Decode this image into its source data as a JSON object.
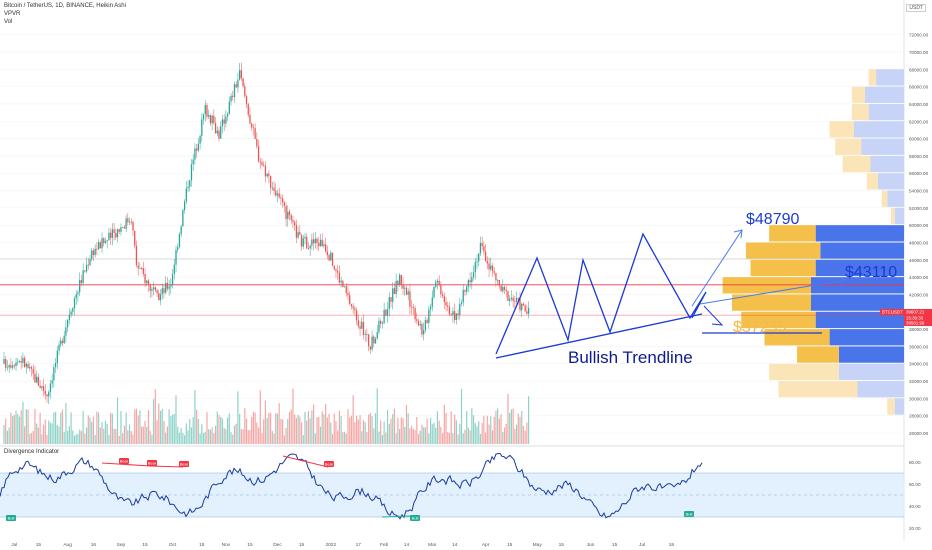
{
  "header": {
    "title": "Bitcoin / TetherUS, 1D, BINANCE, Heikin Ashi",
    "ind1": "VPVR",
    "ind2": "Vol",
    "currency": "USDT"
  },
  "indicator": {
    "title": "Divergence Indicator",
    "y_ticks": [
      "80.00",
      "60.00",
      "40.00",
      "20.00"
    ],
    "labels": [
      {
        "text": "Bull",
        "type": "bull"
      },
      {
        "text": "Bear",
        "type": "bear"
      },
      {
        "text": "Bear",
        "type": "bear"
      },
      {
        "text": "Bear",
        "type": "bear"
      },
      {
        "text": "Bear",
        "type": "bear"
      },
      {
        "text": "Bull",
        "type": "bull"
      },
      {
        "text": "Bull",
        "type": "bull"
      }
    ]
  },
  "price_axis": {
    "ticks": [
      "72000.00",
      "70000.00",
      "68000.00",
      "66000.00",
      "64000.00",
      "62000.00",
      "60000.00",
      "58000.00",
      "56000.00",
      "54000.00",
      "52000.00",
      "50000.00",
      "48000.00",
      "46000.00",
      "44000.00",
      "42000.00",
      "40000.00",
      "38000.00",
      "36000.00",
      "34000.00",
      "32000.00",
      "30000.00",
      "28000.00",
      "26000.00"
    ],
    "tags": [
      {
        "text": "39607.21",
        "color": "#f23645"
      },
      {
        "text": "15:39:33",
        "color": "#f23645"
      },
      {
        "text": "39561.99",
        "color": "#f23645"
      }
    ],
    "symbol": "BTCUSDT"
  },
  "time_axis": [
    "Jul",
    "15",
    "Aug",
    "16",
    "Sep",
    "15",
    "Oct",
    "18",
    "Nov",
    "15",
    "Dec",
    "15",
    "2022",
    "17",
    "Feb",
    "14",
    "Mar",
    "14",
    "Apr",
    "15",
    "May",
    "15",
    "Jun",
    "15",
    "Jul",
    "18"
  ],
  "annotations": [
    {
      "text": "$48790",
      "color": "#1a3ad6"
    },
    {
      "text": "$43110",
      "color": "#1a3ad6"
    },
    {
      "text": "$37235",
      "color": "#f5b84c"
    },
    {
      "text": "Bullish Trendline",
      "color": "#0d1b8f"
    }
  ],
  "chart_data": {
    "type": "candlestick",
    "title": "Bitcoin / TetherUS, 1D, BINANCE, Heikin Ashi",
    "ylim": [
      24500,
      73000
    ],
    "x_range": [
      "2021-06-25",
      "2022-07-25"
    ],
    "price_path": [
      [
        "2021-06-25",
        34000
      ],
      [
        "2021-07-05",
        34500
      ],
      [
        "2021-07-20",
        30500
      ],
      [
        "2021-08-02",
        40000
      ],
      [
        "2021-08-15",
        47000
      ],
      [
        "2021-08-25",
        48500
      ],
      [
        "2021-09-07",
        51000
      ],
      [
        "2021-09-10",
        45500
      ],
      [
        "2021-09-22",
        41500
      ],
      [
        "2021-09-30",
        43500
      ],
      [
        "2021-10-10",
        55000
      ],
      [
        "2021-10-20",
        63500
      ],
      [
        "2021-10-28",
        60500
      ],
      [
        "2021-11-09",
        67500
      ],
      [
        "2021-11-20",
        58000
      ],
      [
        "2021-12-04",
        52000
      ],
      [
        "2021-12-15",
        48000
      ],
      [
        "2021-12-28",
        48000
      ],
      [
        "2022-01-10",
        42000
      ],
      [
        "2022-01-24",
        36000
      ],
      [
        "2022-02-10",
        44000
      ],
      [
        "2022-02-24",
        37500
      ],
      [
        "2022-03-03",
        44000
      ],
      [
        "2022-03-14",
        39000
      ],
      [
        "2022-03-29",
        47500
      ],
      [
        "2022-04-10",
        42500
      ],
      [
        "2022-04-20",
        41000
      ],
      [
        "2022-04-27",
        39600
      ]
    ],
    "horizontal_levels": [
      {
        "value": 43110,
        "color": "#f23645"
      },
      {
        "value": 46100,
        "color": "#cccccc"
      },
      {
        "value": 39600,
        "color": "#f23645"
      }
    ],
    "volume_profile": [
      {
        "price": 67000,
        "buy": 30,
        "sell": 8
      },
      {
        "price": 65000,
        "buy": 42,
        "sell": 14
      },
      {
        "price": 63000,
        "buy": 38,
        "sell": 18
      },
      {
        "price": 61000,
        "buy": 54,
        "sell": 26
      },
      {
        "price": 59000,
        "buy": 46,
        "sell": 28
      },
      {
        "price": 57000,
        "buy": 36,
        "sell": 30
      },
      {
        "price": 55000,
        "buy": 28,
        "sell": 12
      },
      {
        "price": 53000,
        "buy": 18,
        "sell": 6
      },
      {
        "price": 51000,
        "buy": 10,
        "sell": 4
      },
      {
        "price": 49000,
        "buy": 95,
        "sell": 50
      },
      {
        "price": 47000,
        "buy": 90,
        "sell": 80
      },
      {
        "price": 45000,
        "buy": 95,
        "sell": 70
      },
      {
        "price": 43000,
        "buy": 100,
        "sell": 95
      },
      {
        "price": 41000,
        "buy": 100,
        "sell": 85
      },
      {
        "price": 39000,
        "buy": 95,
        "sell": 80
      },
      {
        "price": 37000,
        "buy": 80,
        "sell": 70
      },
      {
        "price": 35000,
        "buy": 70,
        "sell": 45
      },
      {
        "price": 33000,
        "buy": 70,
        "sell": 75
      },
      {
        "price": 31000,
        "buy": 50,
        "sell": 85
      },
      {
        "price": 29000,
        "buy": 10,
        "sell": 8
      }
    ]
  }
}
